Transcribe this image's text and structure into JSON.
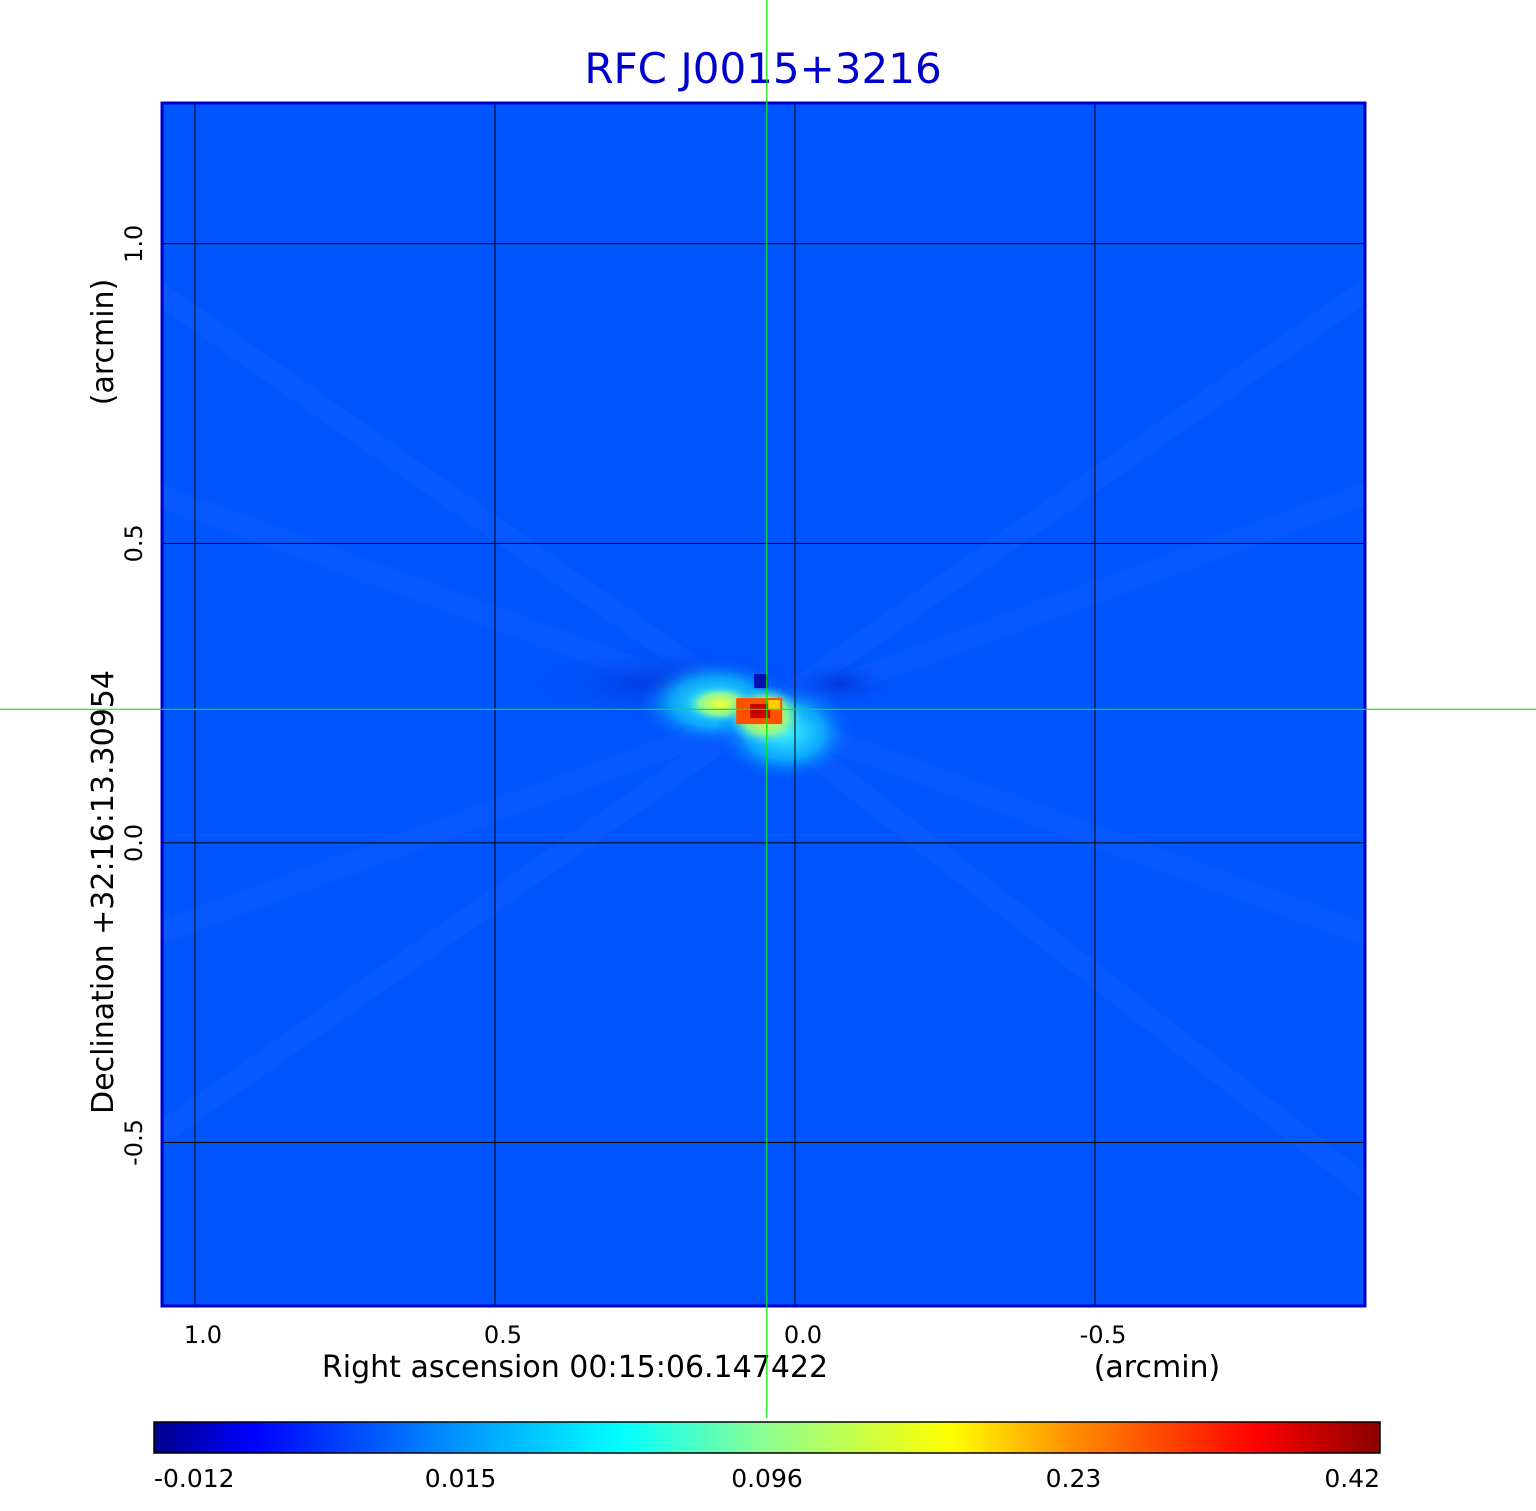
{
  "chart_data": {
    "type": "heatmap",
    "title": "RFC J0015+3216",
    "xlabel": "Right ascension  00:15:06.147422",
    "xunit": "(arcmin)",
    "ylabel": "Declination  +32:16:13.30954",
    "yunit": "(arcmin)",
    "x_ticks": [
      {
        "value": 1.0,
        "label": "1.0"
      },
      {
        "value": 0.5,
        "label": "0.5"
      },
      {
        "value": 0.0,
        "label": "0.0"
      },
      {
        "value": -0.5,
        "label": "-0.5"
      }
    ],
    "y_ticks": [
      {
        "value": 1.0,
        "label": "1.0"
      },
      {
        "value": 0.5,
        "label": "0.5"
      },
      {
        "value": 0.0,
        "label": "0.0"
      },
      {
        "value": -0.5,
        "label": "-0.5"
      }
    ],
    "xlim": [
      1.055,
      -0.95
    ],
    "ylim": [
      -0.773,
      1.235
    ],
    "grid": true,
    "crosshair": {
      "x": 0.047,
      "y": 0.223
    },
    "peak": {
      "x": 0.058,
      "y": 0.215,
      "value": 0.42
    },
    "colorbar": {
      "position": "bottom",
      "tick_labels": [
        "-0.012",
        "0.015",
        "0.096",
        "0.23",
        "0.42"
      ],
      "colormap": [
        "#00008b",
        "#0000ff",
        "#0096ff",
        "#00ffff",
        "#ffff00",
        "#ff8c00",
        "#ff0000",
        "#8b0000"
      ]
    },
    "colors": {
      "background": "#0055ff",
      "title": "#0000cc",
      "frame": "#0000cc",
      "grid": "#000000",
      "crosshair": "#00ee00"
    }
  }
}
